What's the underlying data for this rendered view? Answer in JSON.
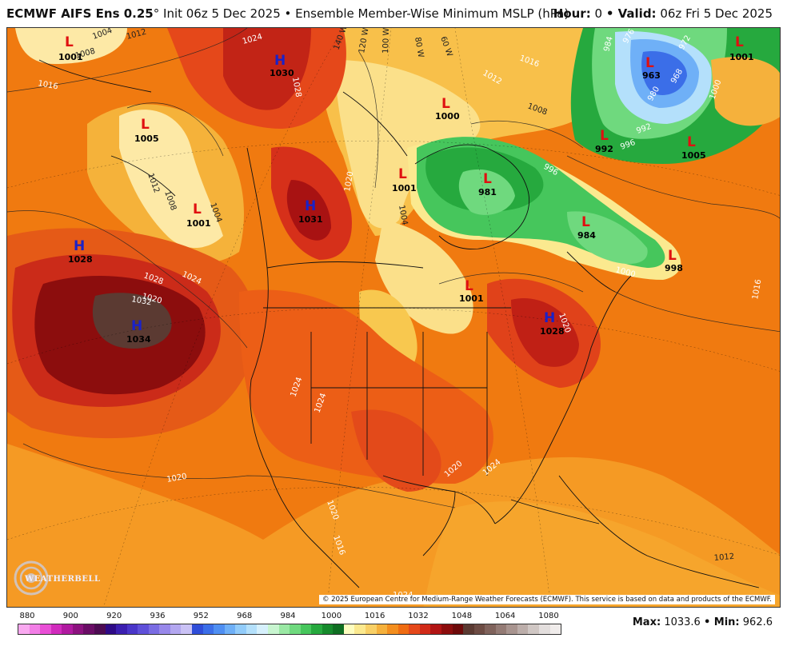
{
  "header": {
    "model": "ECMWF AIFS Ens 0.25",
    "degree": "°",
    "init": " Init 06z 5 Dec 2025 • Ensemble Member-Wise Minimum MSLP (hPa)",
    "hour_label": "Hour:",
    "hour_value": "0",
    "valid_label": "• Valid:",
    "valid_value": "06z Fri 5 Dec 2025"
  },
  "map": {
    "copyright": "© 2025 European Centre for Medium-Range Weather Forecasts (ECMWF). This service is based on data and products of the ECMWF.",
    "logo_text": "WEATHERBELL",
    "pressure_centers": [
      {
        "type": "L",
        "value": "1001"
      },
      {
        "type": "H",
        "value": "1030"
      },
      {
        "type": "L",
        "value": "1005"
      },
      {
        "type": "L",
        "value": "1001"
      },
      {
        "type": "H",
        "value": "1031"
      },
      {
        "type": "H",
        "value": "1028"
      },
      {
        "type": "H",
        "value": "1034"
      },
      {
        "type": "L",
        "value": "1000"
      },
      {
        "type": "L",
        "value": "1001"
      },
      {
        "type": "L",
        "value": "981"
      },
      {
        "type": "L",
        "value": "963"
      },
      {
        "type": "L",
        "value": "1001"
      },
      {
        "type": "L",
        "value": "992"
      },
      {
        "type": "L",
        "value": "1005"
      },
      {
        "type": "L",
        "value": "984"
      },
      {
        "type": "L",
        "value": "998"
      },
      {
        "type": "L",
        "value": "1001"
      },
      {
        "type": "H",
        "value": "1028"
      }
    ],
    "isobar_labels": [
      "1004",
      "1012",
      "1008",
      "1016",
      "1024",
      "1028",
      "1032",
      "1020",
      "1012",
      "1008",
      "1004",
      "1028",
      "1024",
      "1020",
      "1004",
      "1016",
      "1012",
      "1008",
      "984",
      "976",
      "972",
      "968",
      "980",
      "1000",
      "992",
      "996",
      "996",
      "1000",
      "1016",
      "1020",
      "1024",
      "1024",
      "1020",
      "1020",
      "1016",
      "1020",
      "1012",
      "1024",
      "1024"
    ],
    "longitude_labels": [
      "140 W",
      "120 W",
      "100 W",
      "80 W",
      "60 W"
    ]
  },
  "legend": {
    "ticks": [
      "880",
      "900",
      "920",
      "936",
      "952",
      "968",
      "984",
      "1000",
      "1016",
      "1032",
      "1048",
      "1064",
      "1080"
    ],
    "colors": [
      "#f9a9f0",
      "#f27ee6",
      "#e94fd6",
      "#d12bbd",
      "#b01aa0",
      "#8c127f",
      "#6a0d66",
      "#4d0b52",
      "#2e0a86",
      "#3b1fb0",
      "#4a36c9",
      "#5f50d9",
      "#7a6ce3",
      "#9888ea",
      "#b3a7f0",
      "#cac2f5",
      "#2f4dd8",
      "#3b6ee8",
      "#4f8ff2",
      "#6fb0f7",
      "#92ccfa",
      "#b4e0fb",
      "#d6f0fc",
      "#c8f5d0",
      "#9ae8a4",
      "#6fd97e",
      "#46c65c",
      "#26a93e",
      "#168a2c",
      "#0f6e22",
      "#fdfdc0",
      "#fbe98f",
      "#f8d066",
      "#f5b13c",
      "#f38e1e",
      "#ef6c12",
      "#e5481a",
      "#d12a18",
      "#b11414",
      "#8c0d0d",
      "#6d0a0a",
      "#5b3a32",
      "#6d4c44",
      "#80635c",
      "#947b75",
      "#a8948f",
      "#bcaeaa",
      "#d0c7c4",
      "#e3dedd",
      "#f0eceb"
    ]
  },
  "footer": {
    "max_label": "Max:",
    "max_value": "1033.6",
    "min_label": "• Min:",
    "min_value": "962.6"
  }
}
